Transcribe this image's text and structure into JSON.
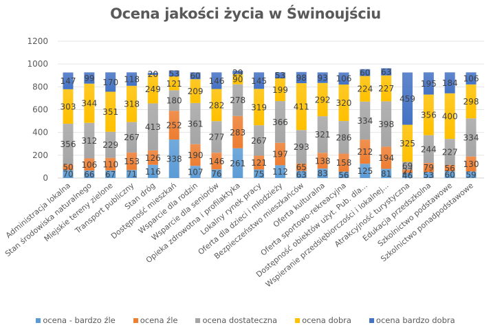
{
  "chart_data": {
    "type": "bar",
    "stacked": true,
    "title": "Ocena jakości życia w Świnoujściu",
    "xlabel": "",
    "ylabel": "",
    "ylim": [
      0,
      1200
    ],
    "yticks": [
      0,
      200,
      400,
      600,
      800,
      1000,
      1200
    ],
    "grid": true,
    "legend_position": "bottom",
    "categories": [
      "Administracja lokalna",
      "Stan środowiska naturalnego",
      "Miejskie tereny zielone",
      "Transport publiczny",
      "Stan dróg",
      "Dostępność mieszkań",
      "Wsparcie dla rodzin",
      "Wsparcie dla seniorów",
      "Opieka zdrowotna i profilaktyka",
      "Lokalny rynek pracy",
      "Oferta dla dzieci i młodzieży",
      "Bezpieczeństwo mieszkańców",
      "Oferta kulturalna",
      "Oferta sportowo-rekreacyjna",
      "Dostępność obiektów użyt. Pub. dla...",
      "Wspieranie przedsiębiorczości i lokalnej...",
      "Atrakcyjność turystyczna",
      "Edukacja przedszkolna",
      "Szkolnictwo podstawowe",
      "Szkolnictwo ponadpodstawowe"
    ],
    "series": [
      {
        "name": "ocena - bardzo źle",
        "color": "#5B9BD5",
        "values": [
          70,
          66,
          67,
          71,
          116,
          338,
          107,
          76,
          261,
          75,
          112,
          63,
          83,
          56,
          125,
          81,
          46,
          53,
          60,
          59
        ]
      },
      {
        "name": "ocena źle",
        "color": "#ED7D31",
        "values": [
          50,
          106,
          110,
          153,
          126,
          252,
          190,
          146,
          283,
          121,
          197,
          65,
          138,
          158,
          212,
          194,
          27,
          79,
          56,
          130
        ]
      },
      {
        "name": "ocena dostateczna",
        "color": "#A5A5A5",
        "values": [
          356,
          312,
          229,
          267,
          413,
          180,
          361,
          277,
          278,
          267,
          366,
          293,
          321,
          286,
          334,
          398,
          69,
          244,
          227,
          334
        ]
      },
      {
        "name": "ocena dobra",
        "color": "#FFC000",
        "values": [
          303,
          344,
          351,
          318,
          249,
          121,
          209,
          282,
          90,
          319,
          199,
          411,
          292,
          320,
          224,
          227,
          325,
          356,
          400,
          298
        ]
      },
      {
        "name": "ocena bardzo dobra",
        "color": "#4472C4",
        "values": [
          147,
          99,
          170,
          118,
          20,
          53,
          60,
          146,
          29,
          145,
          53,
          98,
          93,
          106,
          60,
          63,
          459,
          195,
          184,
          106
        ]
      }
    ]
  }
}
